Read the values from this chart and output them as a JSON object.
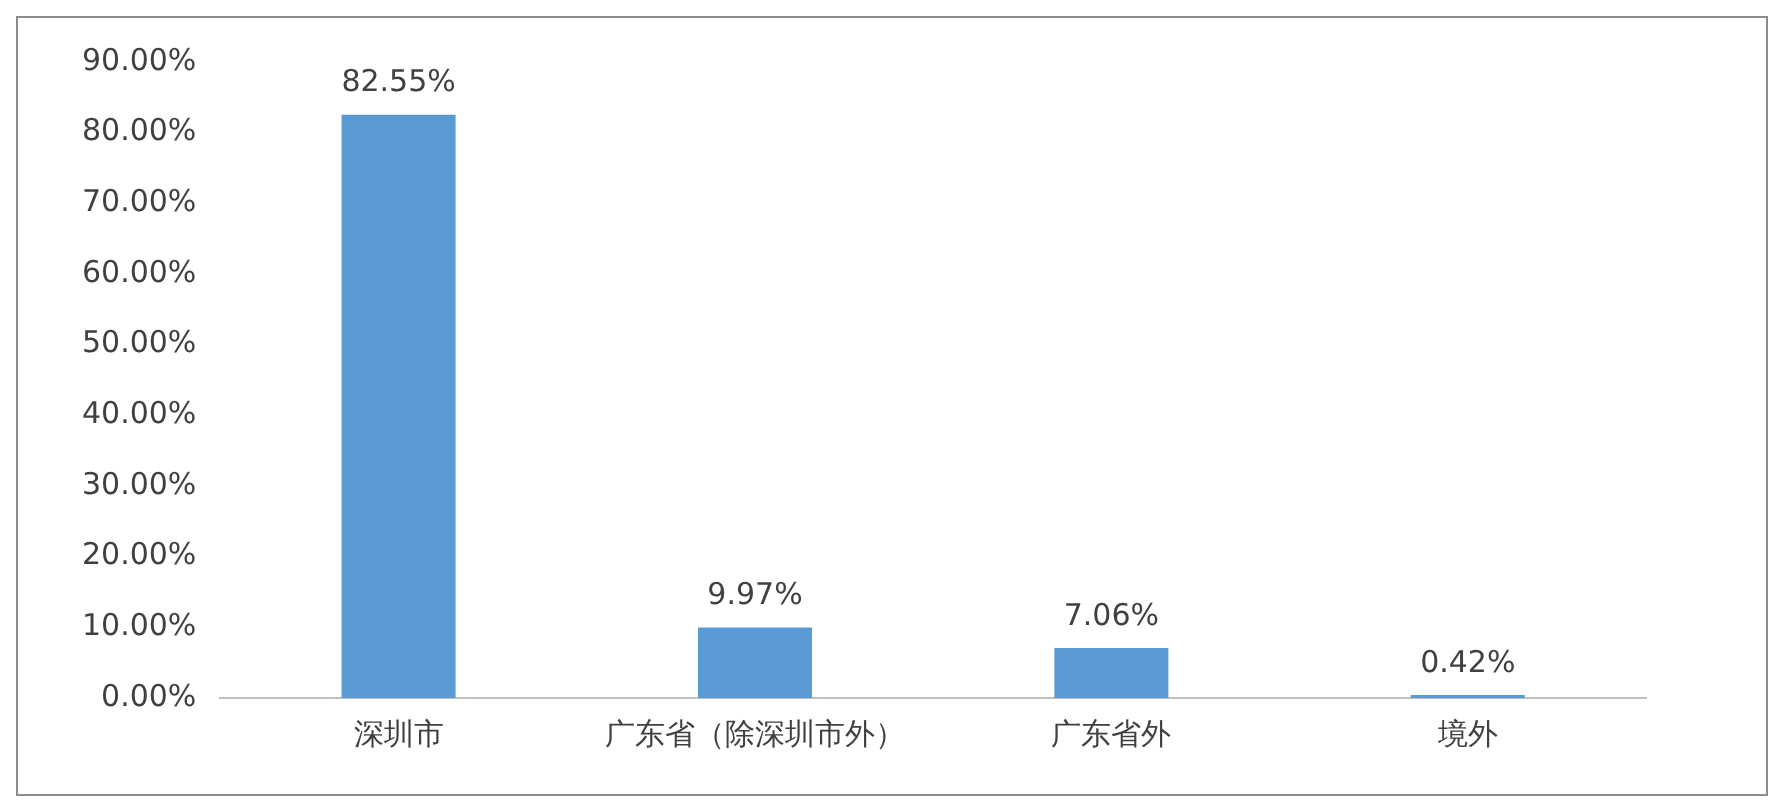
{
  "chart_data": {
    "type": "bar",
    "categories": [
      "深圳市",
      "广东省（除深圳市外）",
      "广东省外",
      "境外"
    ],
    "values": [
      82.55,
      9.97,
      7.06,
      0.42
    ],
    "value_labels": [
      "82.55%",
      "9.97%",
      "7.06%",
      "0.42%"
    ],
    "color": "#5b9bd5",
    "ylim": [
      0,
      90
    ],
    "yticks": [
      {
        "value": 0,
        "label": "0.00%"
      },
      {
        "value": 10,
        "label": "10.00%"
      },
      {
        "value": 20,
        "label": "20.00%"
      },
      {
        "value": 30,
        "label": "30.00%"
      },
      {
        "value": 40,
        "label": "40.00%"
      },
      {
        "value": 50,
        "label": "50.00%"
      },
      {
        "value": 60,
        "label": "60.00%"
      },
      {
        "value": 70,
        "label": "70.00%"
      },
      {
        "value": 80,
        "label": "80.00%"
      },
      {
        "value": 90,
        "label": "90.00%"
      }
    ],
    "grid": false,
    "legend": false
  }
}
